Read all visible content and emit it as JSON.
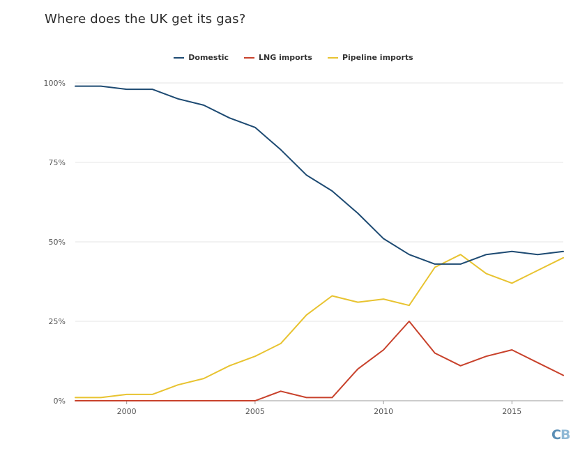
{
  "title": "Where does the UK get its gas?",
  "logo": {
    "text_c": "C",
    "text_b": "B"
  },
  "chart_data": {
    "type": "line",
    "title": "Where does the UK get its gas?",
    "xlabel": "",
    "ylabel": "",
    "xlim": [
      1998,
      2017
    ],
    "ylim": [
      0,
      100
    ],
    "x": [
      1998,
      1999,
      2000,
      2001,
      2002,
      2003,
      2004,
      2005,
      2006,
      2007,
      2008,
      2009,
      2010,
      2011,
      2012,
      2013,
      2014,
      2015,
      2016,
      2017
    ],
    "x_ticks": [
      2000,
      2005,
      2010,
      2015
    ],
    "x_tick_labels": [
      "2000",
      "2005",
      "2010",
      "2015"
    ],
    "y_ticks": [
      0,
      25,
      50,
      75,
      100
    ],
    "y_tick_labels": [
      "0%",
      "25%",
      "50%",
      "75%",
      "100%"
    ],
    "grid": true,
    "legend_position": "top-center",
    "series": [
      {
        "name": "Domestic",
        "color": "#1d4a72",
        "values": [
          99,
          99,
          98,
          98,
          95,
          93,
          89,
          86,
          79,
          71,
          66,
          59,
          51,
          46,
          43,
          43,
          46,
          47,
          46,
          47
        ]
      },
      {
        "name": "LNG imports",
        "color": "#c8412b",
        "values": [
          0,
          0,
          0,
          0,
          0,
          0,
          0,
          0,
          3,
          1,
          1,
          10,
          16,
          25,
          15,
          11,
          14,
          16,
          12,
          8
        ]
      },
      {
        "name": "Pipeline imports",
        "color": "#e8c330",
        "values": [
          1,
          1,
          2,
          2,
          5,
          7,
          11,
          14,
          18,
          27,
          33,
          31,
          32,
          30,
          42,
          46,
          40,
          37,
          41,
          45
        ]
      }
    ]
  }
}
